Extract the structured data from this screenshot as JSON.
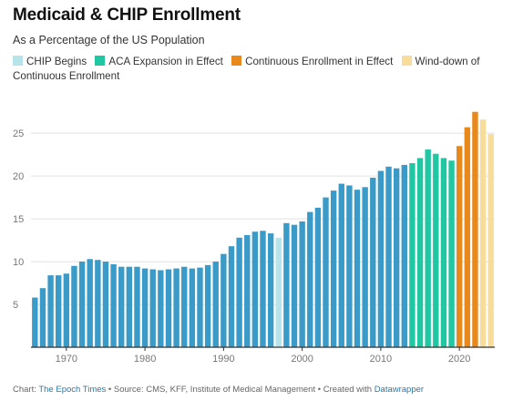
{
  "colors": {
    "default": "#3a9bc8",
    "chip": "#b7e3ea",
    "aca": "#20c7a3",
    "continuous": "#e9891c",
    "winddown": "#f7dd99",
    "grid": "#e0e0e0",
    "axis": "#333333",
    "tick_text": "#777777"
  },
  "chart_data": {
    "type": "bar",
    "title": "Medicaid & CHIP Enrollment",
    "subtitle": "As a Percentage of the US Population",
    "legend": [
      {
        "label": "CHIP Begins",
        "color_key": "chip"
      },
      {
        "label": "ACA Expansion in Effect",
        "color_key": "aca"
      },
      {
        "label": "Continuous Enrollment in Effect",
        "color_key": "continuous"
      },
      {
        "label": "Wind-down of Continuous Enrollment",
        "color_key": "winddown"
      }
    ],
    "legend_position": "top",
    "x": [
      1966,
      1967,
      1968,
      1969,
      1970,
      1971,
      1972,
      1973,
      1974,
      1975,
      1976,
      1977,
      1978,
      1979,
      1980,
      1981,
      1982,
      1983,
      1984,
      1985,
      1986,
      1987,
      1988,
      1989,
      1990,
      1991,
      1992,
      1993,
      1994,
      1995,
      1996,
      1997,
      1998,
      1999,
      2000,
      2001,
      2002,
      2003,
      2004,
      2005,
      2006,
      2007,
      2008,
      2009,
      2010,
      2011,
      2012,
      2013,
      2014,
      2015,
      2016,
      2017,
      2018,
      2019,
      2020,
      2021,
      2022,
      2023,
      2024
    ],
    "values": [
      5.8,
      6.9,
      8.4,
      8.4,
      8.6,
      9.5,
      10.0,
      10.3,
      10.2,
      10.0,
      9.7,
      9.4,
      9.4,
      9.4,
      9.2,
      9.1,
      9.0,
      9.1,
      9.2,
      9.4,
      9.2,
      9.3,
      9.6,
      10.0,
      10.9,
      11.8,
      12.8,
      13.1,
      13.5,
      13.6,
      13.3,
      12.8,
      14.5,
      14.3,
      14.7,
      15.8,
      16.3,
      17.5,
      18.3,
      19.1,
      18.9,
      18.4,
      18.7,
      19.8,
      20.6,
      21.1,
      20.9,
      21.3,
      21.5,
      22.1,
      23.1,
      22.6,
      22.1,
      21.8,
      23.5,
      25.7,
      27.5,
      26.6,
      24.9
    ],
    "categories_color": [
      "default",
      "default",
      "default",
      "default",
      "default",
      "default",
      "default",
      "default",
      "default",
      "default",
      "default",
      "default",
      "default",
      "default",
      "default",
      "default",
      "default",
      "default",
      "default",
      "default",
      "default",
      "default",
      "default",
      "default",
      "default",
      "default",
      "default",
      "default",
      "default",
      "default",
      "default",
      "chip",
      "default",
      "default",
      "default",
      "default",
      "default",
      "default",
      "default",
      "default",
      "default",
      "default",
      "default",
      "default",
      "default",
      "default",
      "default",
      "default",
      "aca",
      "aca",
      "aca",
      "aca",
      "aca",
      "aca",
      "continuous",
      "continuous",
      "continuous",
      "winddown",
      "winddown"
    ],
    "xlabel": "",
    "ylabel": "",
    "xticks": [
      1970,
      1980,
      1990,
      2000,
      2010,
      2020
    ],
    "yticks": [
      5,
      10,
      15,
      20,
      25
    ],
    "ylim": [
      0,
      28
    ],
    "xlim": [
      1965.5,
      2024.5
    ],
    "grid": true
  },
  "footer": {
    "prefix": "Chart: ",
    "publisher": "The Epoch Times",
    "source": " • Source: CMS, KFF, Institute of Medical Management • Created with ",
    "tool": "Datawrapper"
  }
}
